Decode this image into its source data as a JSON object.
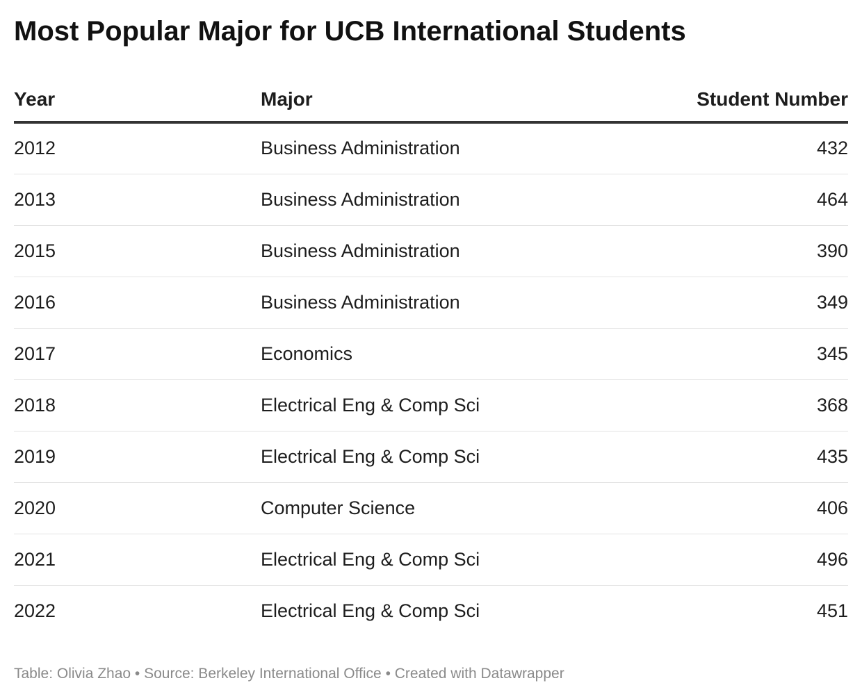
{
  "chart_data": {
    "type": "table",
    "title": "Most Popular Major for UCB International Students",
    "columns": [
      "Year",
      "Major",
      "Student Number"
    ],
    "rows": [
      {
        "year": "2012",
        "major": "Business Administration",
        "students": 432
      },
      {
        "year": "2013",
        "major": "Business Administration",
        "students": 464
      },
      {
        "year": "2015",
        "major": "Business Administration",
        "students": 390
      },
      {
        "year": "2016",
        "major": "Business Administration",
        "students": 349
      },
      {
        "year": "2017",
        "major": "Economics",
        "students": 345
      },
      {
        "year": "2018",
        "major": "Electrical Eng & Comp Sci",
        "students": 368
      },
      {
        "year": "2019",
        "major": "Electrical Eng & Comp Sci",
        "students": 435
      },
      {
        "year": "2020",
        "major": "Computer Science",
        "students": 406
      },
      {
        "year": "2021",
        "major": "Electrical Eng & Comp Sci",
        "students": 496
      },
      {
        "year": "2022",
        "major": "Electrical Eng & Comp Sci",
        "students": 451
      }
    ],
    "footer": "Table: Olivia Zhao • Source: Berkeley International Office • Created with Datawrapper"
  }
}
